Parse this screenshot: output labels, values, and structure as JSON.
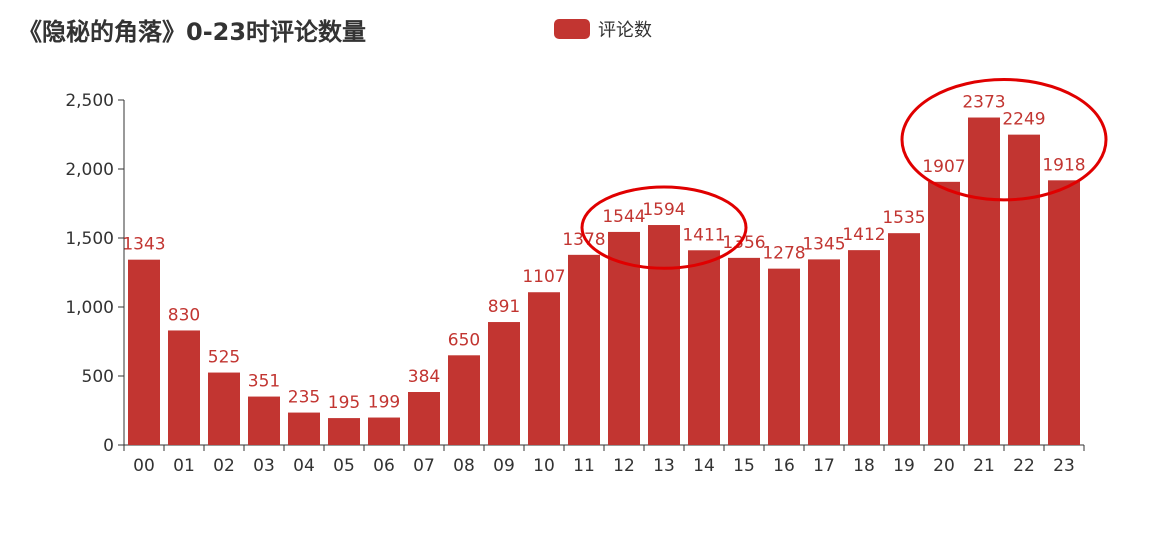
{
  "chart_data": {
    "type": "bar",
    "title": "《隐秘的角落》0-23时评论数量",
    "xlabel": "",
    "ylabel": "",
    "ylim": [
      0,
      2500
    ],
    "yticks": [
      "0",
      "500",
      "1,000",
      "1,500",
      "2,000",
      "2,500"
    ],
    "categories": [
      "00",
      "01",
      "02",
      "03",
      "04",
      "05",
      "06",
      "07",
      "08",
      "09",
      "10",
      "11",
      "12",
      "13",
      "14",
      "15",
      "16",
      "17",
      "18",
      "19",
      "20",
      "21",
      "22",
      "23"
    ],
    "series": [
      {
        "name": "评论数",
        "color": "#c23531",
        "values": [
          1343,
          830,
          525,
          351,
          235,
          195,
          199,
          384,
          650,
          891,
          1107,
          1378,
          1544,
          1594,
          1411,
          1356,
          1278,
          1345,
          1412,
          1535,
          1907,
          2373,
          2249,
          1918
        ]
      }
    ],
    "legend_position": "top",
    "grid": false,
    "annotations": [
      {
        "shape": "ellipse",
        "color": "#e00000",
        "around_categories": [
          "12",
          "13",
          "14"
        ]
      },
      {
        "shape": "ellipse",
        "color": "#e00000",
        "around_categories": [
          "20",
          "21",
          "22",
          "23"
        ]
      }
    ]
  }
}
